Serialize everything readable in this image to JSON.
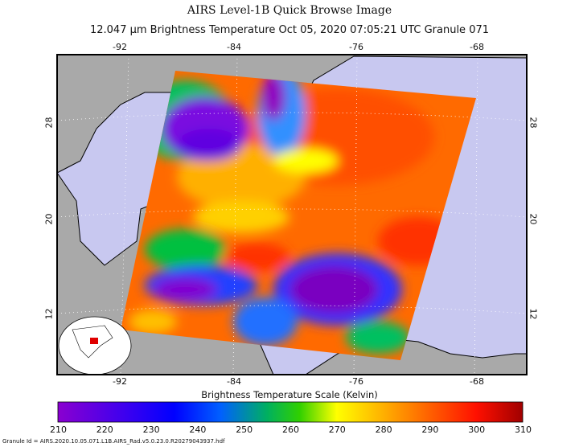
{
  "header": {
    "title": "AIRS Level-1B Quick Browse Image",
    "subtitle": "12.047 µm Brightness Temperature    Oct 05, 2020 07:05:21 UTC   Granule 071"
  },
  "map": {
    "longitude_labels": [
      "-92",
      "-84",
      "-76",
      "-68"
    ],
    "latitude_labels": [
      "28",
      "20",
      "12"
    ],
    "colors": {
      "land": "#a9a9a9",
      "ocean": "#c8c8f0",
      "coast": "#000000"
    }
  },
  "colorbar": {
    "title": "Brightness Temperature Scale (Kelvin)",
    "ticks": [
      "210",
      "220",
      "230",
      "240",
      "250",
      "260",
      "270",
      "280",
      "290",
      "300",
      "310"
    ],
    "range": [
      210,
      310
    ],
    "colors": [
      "#8a00d0",
      "#4a00e0",
      "#0000ff",
      "#0060ff",
      "#00c040",
      "#a0e000",
      "#ffff00",
      "#ffb000",
      "#ff6000",
      "#ff1000",
      "#a00000"
    ]
  },
  "footer": {
    "granule_id": "Granule Id = AIRS.2020.10.05.071.L1B.AIRS_Rad.v5.0.23.0.R20279043937.hdf"
  }
}
